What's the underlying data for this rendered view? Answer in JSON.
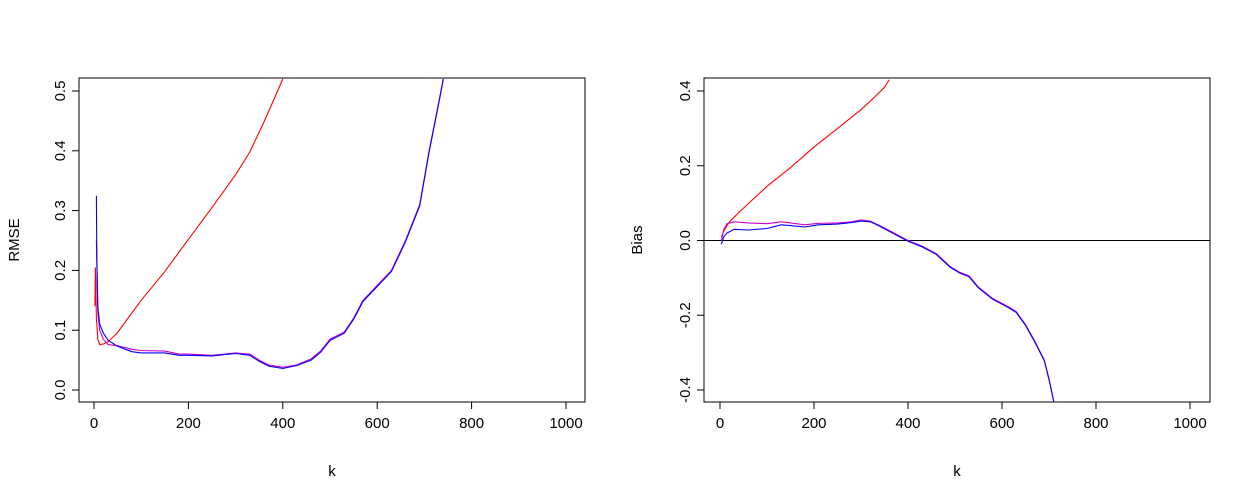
{
  "chart_data": [
    {
      "type": "line",
      "title": "",
      "xlabel": "k",
      "ylabel": "RMSE",
      "xlim": [
        0,
        1000
      ],
      "ylim": [
        0,
        0.5
      ],
      "xticks": [
        0,
        200,
        400,
        600,
        800,
        1000
      ],
      "yticks": [
        0.0,
        0.1,
        0.2,
        0.3,
        0.4,
        0.5
      ],
      "xtick_labels": [
        "0",
        "200",
        "400",
        "600",
        "800",
        "1000"
      ],
      "ytick_labels": [
        "0.0",
        "0.1",
        "0.2",
        "0.3",
        "0.4",
        "0.5"
      ],
      "grid": false,
      "legend": "none",
      "series": [
        {
          "color": "#ff0000",
          "points": [
            [
              2,
              0.14
            ],
            [
              3,
              0.205
            ],
            [
              5,
              0.12
            ],
            [
              8,
              0.085
            ],
            [
              12,
              0.076
            ],
            [
              20,
              0.077
            ],
            [
              30,
              0.081
            ],
            [
              50,
              0.096
            ],
            [
              70,
              0.118
            ],
            [
              100,
              0.15
            ],
            [
              150,
              0.198
            ],
            [
              200,
              0.252
            ],
            [
              250,
              0.305
            ],
            [
              300,
              0.36
            ],
            [
              330,
              0.398
            ],
            [
              360,
              0.448
            ],
            [
              380,
              0.484
            ],
            [
              400,
              0.52
            ]
          ]
        },
        {
          "color": "#cc00cc",
          "points": [
            [
              5,
              0.25
            ],
            [
              8,
              0.13
            ],
            [
              12,
              0.1
            ],
            [
              20,
              0.085
            ],
            [
              30,
              0.076
            ],
            [
              50,
              0.074
            ],
            [
              80,
              0.068
            ],
            [
              100,
              0.066
            ],
            [
              150,
              0.065
            ],
            [
              180,
              0.06
            ],
            [
              200,
              0.06
            ],
            [
              250,
              0.058
            ],
            [
              300,
              0.062
            ],
            [
              330,
              0.06
            ],
            [
              350,
              0.05
            ],
            [
              370,
              0.042
            ],
            [
              400,
              0.038
            ],
            [
              430,
              0.042
            ],
            [
              460,
              0.052
            ],
            [
              480,
              0.065
            ],
            [
              500,
              0.085
            ],
            [
              530,
              0.097
            ],
            [
              550,
              0.12
            ],
            [
              570,
              0.15
            ],
            [
              600,
              0.175
            ],
            [
              630,
              0.2
            ],
            [
              660,
              0.25
            ],
            [
              690,
              0.31
            ],
            [
              710,
              0.4
            ],
            [
              730,
              0.48
            ],
            [
              740,
              0.52
            ]
          ]
        },
        {
          "color": "#0000ff",
          "points": [
            [
              5,
              0.325
            ],
            [
              6,
              0.22
            ],
            [
              8,
              0.14
            ],
            [
              12,
              0.11
            ],
            [
              20,
              0.095
            ],
            [
              30,
              0.083
            ],
            [
              50,
              0.073
            ],
            [
              80,
              0.064
            ],
            [
              100,
              0.062
            ],
            [
              150,
              0.062
            ],
            [
              180,
              0.058
            ],
            [
              200,
              0.058
            ],
            [
              250,
              0.057
            ],
            [
              300,
              0.061
            ],
            [
              330,
              0.058
            ],
            [
              350,
              0.048
            ],
            [
              370,
              0.04
            ],
            [
              400,
              0.036
            ],
            [
              430,
              0.041
            ],
            [
              460,
              0.05
            ],
            [
              480,
              0.063
            ],
            [
              500,
              0.083
            ],
            [
              530,
              0.095
            ],
            [
              550,
              0.118
            ],
            [
              570,
              0.148
            ],
            [
              600,
              0.173
            ],
            [
              630,
              0.198
            ],
            [
              660,
              0.248
            ],
            [
              690,
              0.308
            ],
            [
              710,
              0.398
            ],
            [
              730,
              0.478
            ],
            [
              740,
              0.52
            ]
          ]
        }
      ]
    },
    {
      "type": "line",
      "title": "",
      "xlabel": "k",
      "ylabel": "Bias",
      "xlim": [
        0,
        1000
      ],
      "ylim": [
        -0.4,
        0.4
      ],
      "xticks": [
        0,
        200,
        400,
        600,
        800,
        1000
      ],
      "yticks": [
        -0.4,
        -0.2,
        0.0,
        0.2,
        0.4
      ],
      "xtick_labels": [
        "0",
        "200",
        "400",
        "600",
        "800",
        "1000"
      ],
      "ytick_labels": [
        "-0.4",
        "-0.2",
        "0.0",
        "0.2",
        "0.4"
      ],
      "hline": 0,
      "grid": false,
      "legend": "none",
      "series": [
        {
          "color": "#ff0000",
          "points": [
            [
              3,
              0.01
            ],
            [
              10,
              0.03
            ],
            [
              20,
              0.05
            ],
            [
              40,
              0.075
            ],
            [
              70,
              0.11
            ],
            [
              100,
              0.145
            ],
            [
              150,
              0.195
            ],
            [
              200,
              0.25
            ],
            [
              250,
              0.3
            ],
            [
              300,
              0.35
            ],
            [
              330,
              0.385
            ],
            [
              350,
              0.41
            ],
            [
              360,
              0.43
            ]
          ]
        },
        {
          "color": "#cc00cc",
          "points": [
            [
              3,
              0.0
            ],
            [
              8,
              0.03
            ],
            [
              15,
              0.045
            ],
            [
              30,
              0.05
            ],
            [
              60,
              0.047
            ],
            [
              100,
              0.045
            ],
            [
              130,
              0.05
            ],
            [
              150,
              0.047
            ],
            [
              180,
              0.042
            ],
            [
              210,
              0.046
            ],
            [
              250,
              0.047
            ],
            [
              280,
              0.05
            ],
            [
              300,
              0.055
            ],
            [
              320,
              0.052
            ],
            [
              340,
              0.04
            ],
            [
              370,
              0.02
            ],
            [
              400,
              0.0
            ],
            [
              430,
              -0.015
            ],
            [
              460,
              -0.035
            ],
            [
              490,
              -0.07
            ],
            [
              510,
              -0.085
            ],
            [
              530,
              -0.095
            ],
            [
              550,
              -0.125
            ],
            [
              580,
              -0.155
            ],
            [
              610,
              -0.175
            ],
            [
              630,
              -0.19
            ],
            [
              650,
              -0.225
            ],
            [
              670,
              -0.27
            ],
            [
              690,
              -0.32
            ],
            [
              700,
              -0.37
            ],
            [
              710,
              -0.43
            ]
          ]
        },
        {
          "color": "#0000ff",
          "points": [
            [
              3,
              -0.01
            ],
            [
              8,
              0.01
            ],
            [
              15,
              0.02
            ],
            [
              30,
              0.03
            ],
            [
              60,
              0.028
            ],
            [
              100,
              0.032
            ],
            [
              130,
              0.042
            ],
            [
              150,
              0.04
            ],
            [
              180,
              0.036
            ],
            [
              210,
              0.042
            ],
            [
              250,
              0.044
            ],
            [
              280,
              0.048
            ],
            [
              300,
              0.052
            ],
            [
              320,
              0.05
            ],
            [
              340,
              0.038
            ],
            [
              370,
              0.018
            ],
            [
              400,
              -0.002
            ],
            [
              430,
              -0.017
            ],
            [
              460,
              -0.037
            ],
            [
              490,
              -0.072
            ],
            [
              510,
              -0.087
            ],
            [
              530,
              -0.097
            ],
            [
              550,
              -0.127
            ],
            [
              580,
              -0.157
            ],
            [
              610,
              -0.177
            ],
            [
              630,
              -0.192
            ],
            [
              650,
              -0.227
            ],
            [
              670,
              -0.272
            ],
            [
              690,
              -0.322
            ],
            [
              700,
              -0.372
            ],
            [
              710,
              -0.43
            ]
          ]
        }
      ]
    }
  ]
}
